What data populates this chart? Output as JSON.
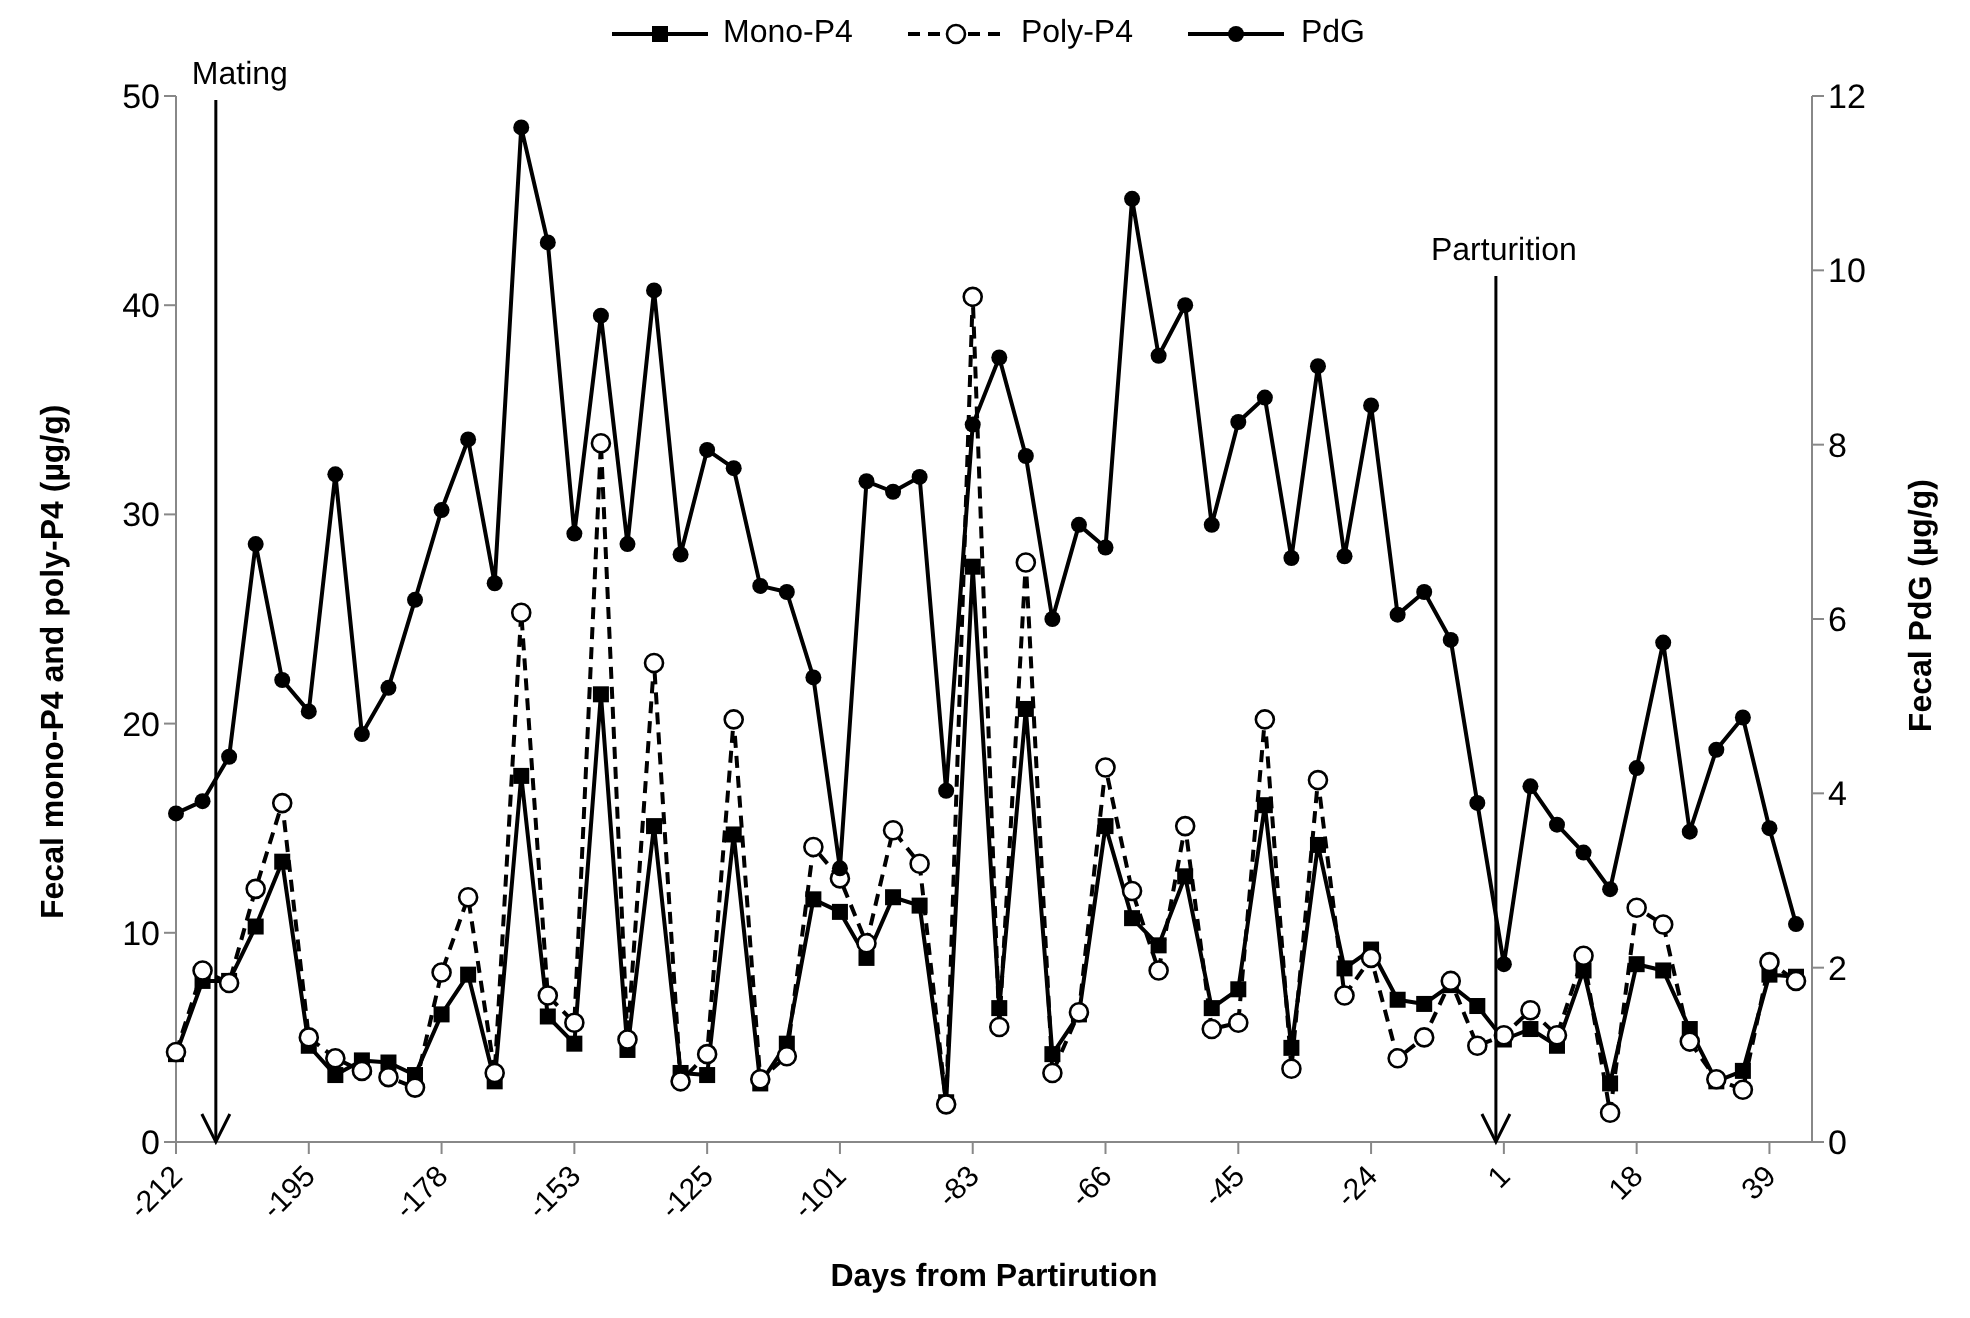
{
  "chart_data": {
    "type": "line",
    "xlabel": "Days from Partirution",
    "ylabel": "Fecal mono-P4 and poly-P4 (µg/g)",
    "y2label": "Fecal PdG (µg/g)",
    "categories": [
      "-212",
      null,
      null,
      null,
      null,
      "-195",
      null,
      null,
      null,
      null,
      "-178",
      null,
      null,
      null,
      null,
      "-153",
      null,
      null,
      null,
      null,
      "-125",
      null,
      null,
      null,
      null,
      "-101",
      null,
      null,
      null,
      null,
      "-83",
      null,
      null,
      null,
      null,
      "-66",
      null,
      null,
      null,
      null,
      "-45",
      null,
      null,
      null,
      null,
      "-24",
      null,
      null,
      null,
      null,
      "1",
      null,
      null,
      null,
      null,
      "18",
      null,
      null,
      null,
      null,
      "39",
      null
    ],
    "series": [
      {
        "name": "Mono-P4",
        "color": "#000000",
        "marker": "square",
        "line_style": "solid",
        "values": [
          4.2,
          7.7,
          7.7,
          10.3,
          13.4,
          4.6,
          3.2,
          3.9,
          3.8,
          3.2,
          6.1,
          8.0,
          2.9,
          17.5,
          6.0,
          4.7,
          21.4,
          4.4,
          15.1,
          3.3,
          3.2,
          14.7,
          2.8,
          4.7,
          11.6,
          11.0,
          8.8,
          11.7,
          11.3,
          1.9,
          27.5,
          6.4,
          20.7,
          4.2,
          6.1,
          15.1,
          10.7,
          9.4,
          12.7,
          6.4,
          7.3,
          16.1,
          4.5,
          14.2,
          8.3,
          9.2,
          6.8,
          6.6,
          7.5,
          6.5,
          4.9,
          5.4,
          4.6,
          8.2,
          2.8,
          8.5,
          8.2,
          5.4,
          2.9,
          3.4,
          8.0,
          7.9
        ]
      },
      {
        "name": "Poly-P4",
        "color": "#000000",
        "marker": "circle-open",
        "line_style": "dashed",
        "values": [
          4.3,
          8.2,
          7.6,
          12.1,
          16.2,
          5.0,
          4.0,
          3.4,
          3.1,
          2.6,
          8.1,
          11.7,
          3.3,
          25.3,
          7.0,
          5.7,
          33.4,
          4.9,
          22.9,
          2.9,
          4.2,
          20.2,
          3.0,
          4.1,
          14.1,
          12.6,
          9.5,
          14.9,
          13.3,
          1.8,
          40.4,
          5.5,
          27.7,
          3.3,
          6.2,
          17.9,
          12.0,
          8.2,
          15.1,
          5.4,
          5.7,
          20.2,
          3.5,
          17.3,
          7.0,
          8.8,
          4.0,
          5.0,
          7.7,
          4.6,
          5.1,
          6.3,
          5.1,
          8.9,
          1.4,
          11.2,
          10.4,
          4.8,
          3.0,
          2.5,
          8.6,
          7.7
        ]
      },
      {
        "name": "PdG",
        "color": "#000000",
        "marker": "circle",
        "line_style": "solid",
        "axis": "y2",
        "values": [
          3.77,
          3.91,
          4.42,
          6.86,
          5.3,
          4.94,
          7.66,
          4.68,
          5.21,
          6.22,
          7.25,
          8.06,
          6.41,
          11.64,
          10.32,
          6.98,
          9.48,
          6.86,
          9.77,
          6.74,
          7.94,
          7.73,
          6.38,
          6.31,
          5.33,
          3.14,
          7.58,
          7.46,
          7.63,
          4.03,
          8.23,
          9.0,
          7.87,
          6.0,
          7.08,
          6.82,
          10.82,
          9.02,
          9.6,
          7.08,
          8.26,
          8.54,
          6.7,
          8.9,
          6.72,
          8.45,
          6.05,
          6.31,
          5.76,
          3.89,
          2.04,
          4.08,
          3.64,
          3.32,
          2.9,
          4.29,
          5.73,
          3.56,
          4.5,
          4.87,
          3.6,
          2.5
        ]
      }
    ],
    "ylim": [
      0,
      50
    ],
    "yticks": [
      0,
      10,
      20,
      30,
      40,
      50
    ],
    "y2lim": [
      0,
      12
    ],
    "y2ticks": [
      0,
      2,
      4,
      6,
      8,
      10,
      12
    ],
    "grid": false,
    "legend": "top",
    "annotations": [
      "Mating",
      "Parturition"
    ]
  }
}
